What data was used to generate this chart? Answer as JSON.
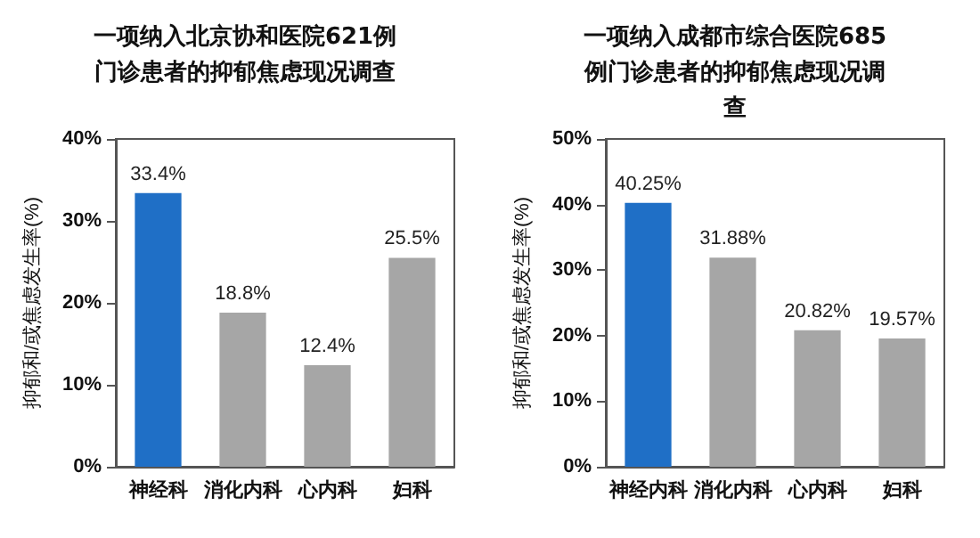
{
  "chart_data": [
    {
      "type": "bar",
      "title": "一项纳入北京协和医院621例门诊患者的抑郁焦虑现况调查",
      "ylabel": "抑郁和/或焦虑发生率(%)",
      "categories": [
        "神经科",
        "消化内科",
        "心内科",
        "妇科"
      ],
      "values": [
        33.4,
        18.8,
        12.4,
        25.5
      ],
      "colors": [
        "#1f6fc6",
        "#a6a6a6",
        "#a6a6a6",
        "#a6a6a6"
      ],
      "value_labels": [
        "33.4%",
        "18.8%",
        "12.4%",
        "25.5%"
      ],
      "ylim": [
        0,
        40
      ],
      "yticks": [
        {
          "value": 0,
          "label": "0%"
        },
        {
          "value": 10,
          "label": "10%"
        },
        {
          "value": 20,
          "label": "20%"
        },
        {
          "value": 30,
          "label": "30%"
        },
        {
          "value": 40,
          "label": "40%"
        }
      ]
    },
    {
      "type": "bar",
      "title": "一项纳入成都市综合医院685例门诊患者的抑郁焦虑现况调查",
      "ylabel": "抑郁和/或焦虑发生率(%)",
      "categories": [
        "神经内科",
        "消化内科",
        "心内科",
        "妇科"
      ],
      "values": [
        40.25,
        31.88,
        20.82,
        19.57
      ],
      "colors": [
        "#1f6fc6",
        "#a6a6a6",
        "#a6a6a6",
        "#a6a6a6"
      ],
      "value_labels": [
        "40.25%",
        "31.88%",
        "20.82%",
        "19.57%"
      ],
      "ylim": [
        0,
        50
      ],
      "yticks": [
        {
          "value": 0,
          "label": "0%"
        },
        {
          "value": 10,
          "label": "10%"
        },
        {
          "value": 20,
          "label": "20%"
        },
        {
          "value": 30,
          "label": "30%"
        },
        {
          "value": 40,
          "label": "40%"
        },
        {
          "value": 50,
          "label": "50%"
        }
      ]
    }
  ]
}
